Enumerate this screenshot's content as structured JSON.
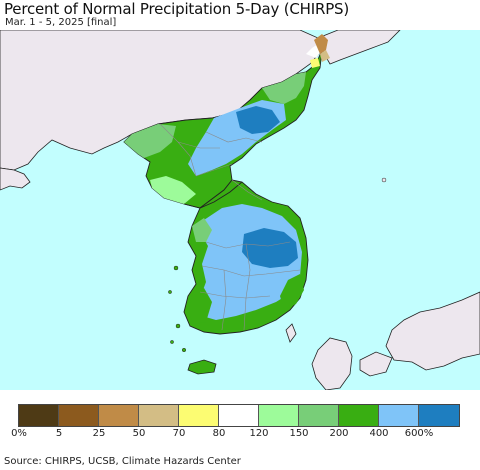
{
  "title": "Percent of Normal Precipitation 5-Day (CHIRPS)",
  "subtitle": "Mar. 1 - 5, 2025 [final]",
  "source": "Source: CHIRPS, UCSB, Climate Hazards Center",
  "colors": {
    "ocean": "#c2fefe",
    "land_nodata": "#ede7ee",
    "border": "#222222",
    "province": "#888888"
  },
  "legend": {
    "colors": [
      "#4e3a15",
      "#8c5a1e",
      "#c08b47",
      "#d3bd85",
      "#fcfc72",
      "#ffffff",
      "#9dfb9a",
      "#78ce78",
      "#39ae12",
      "#7fc4f8",
      "#1e7ec0"
    ],
    "ticks": [
      "0%",
      "5",
      "25",
      "50",
      "70",
      "80",
      "120",
      "150",
      "200",
      "400",
      "600%"
    ]
  }
}
